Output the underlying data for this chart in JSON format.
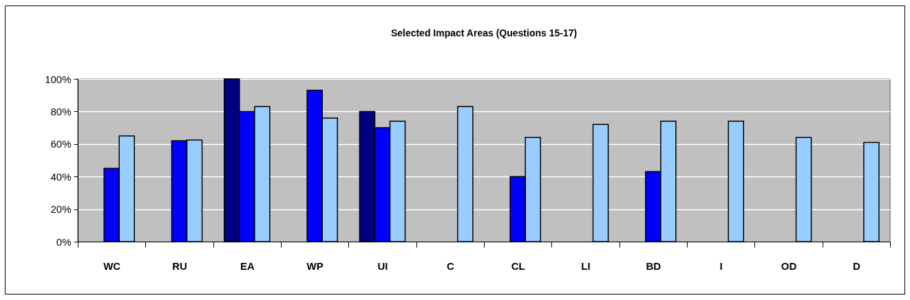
{
  "chart_data": {
    "type": "bar",
    "title": "Selected Impact Areas (Questions 15-17)",
    "categories": [
      "WC",
      "RU",
      "EA",
      "WP",
      "UI",
      "C",
      "CL",
      "LI",
      "BD",
      "I",
      "OD",
      "D"
    ],
    "series": [
      {
        "color": "#000080",
        "values": [
          null,
          null,
          100,
          null,
          80,
          null,
          null,
          null,
          null,
          null,
          null,
          null
        ]
      },
      {
        "color": "#0000ff",
        "values": [
          45,
          62,
          80,
          93,
          70,
          null,
          40,
          null,
          43,
          null,
          null,
          null
        ]
      },
      {
        "color": "#99ccff",
        "values": [
          65,
          62.5,
          83,
          76,
          74,
          83,
          64,
          72,
          74,
          74,
          64,
          61
        ]
      }
    ],
    "ylim": [
      0,
      100
    ],
    "yticks": [
      {
        "value": 0,
        "label": "0%"
      },
      {
        "value": 20,
        "label": "20%"
      },
      {
        "value": 40,
        "label": "40%"
      },
      {
        "value": 60,
        "label": "60%"
      },
      {
        "value": 80,
        "label": "80%"
      },
      {
        "value": 100,
        "label": "100%"
      }
    ],
    "grid": "y"
  }
}
